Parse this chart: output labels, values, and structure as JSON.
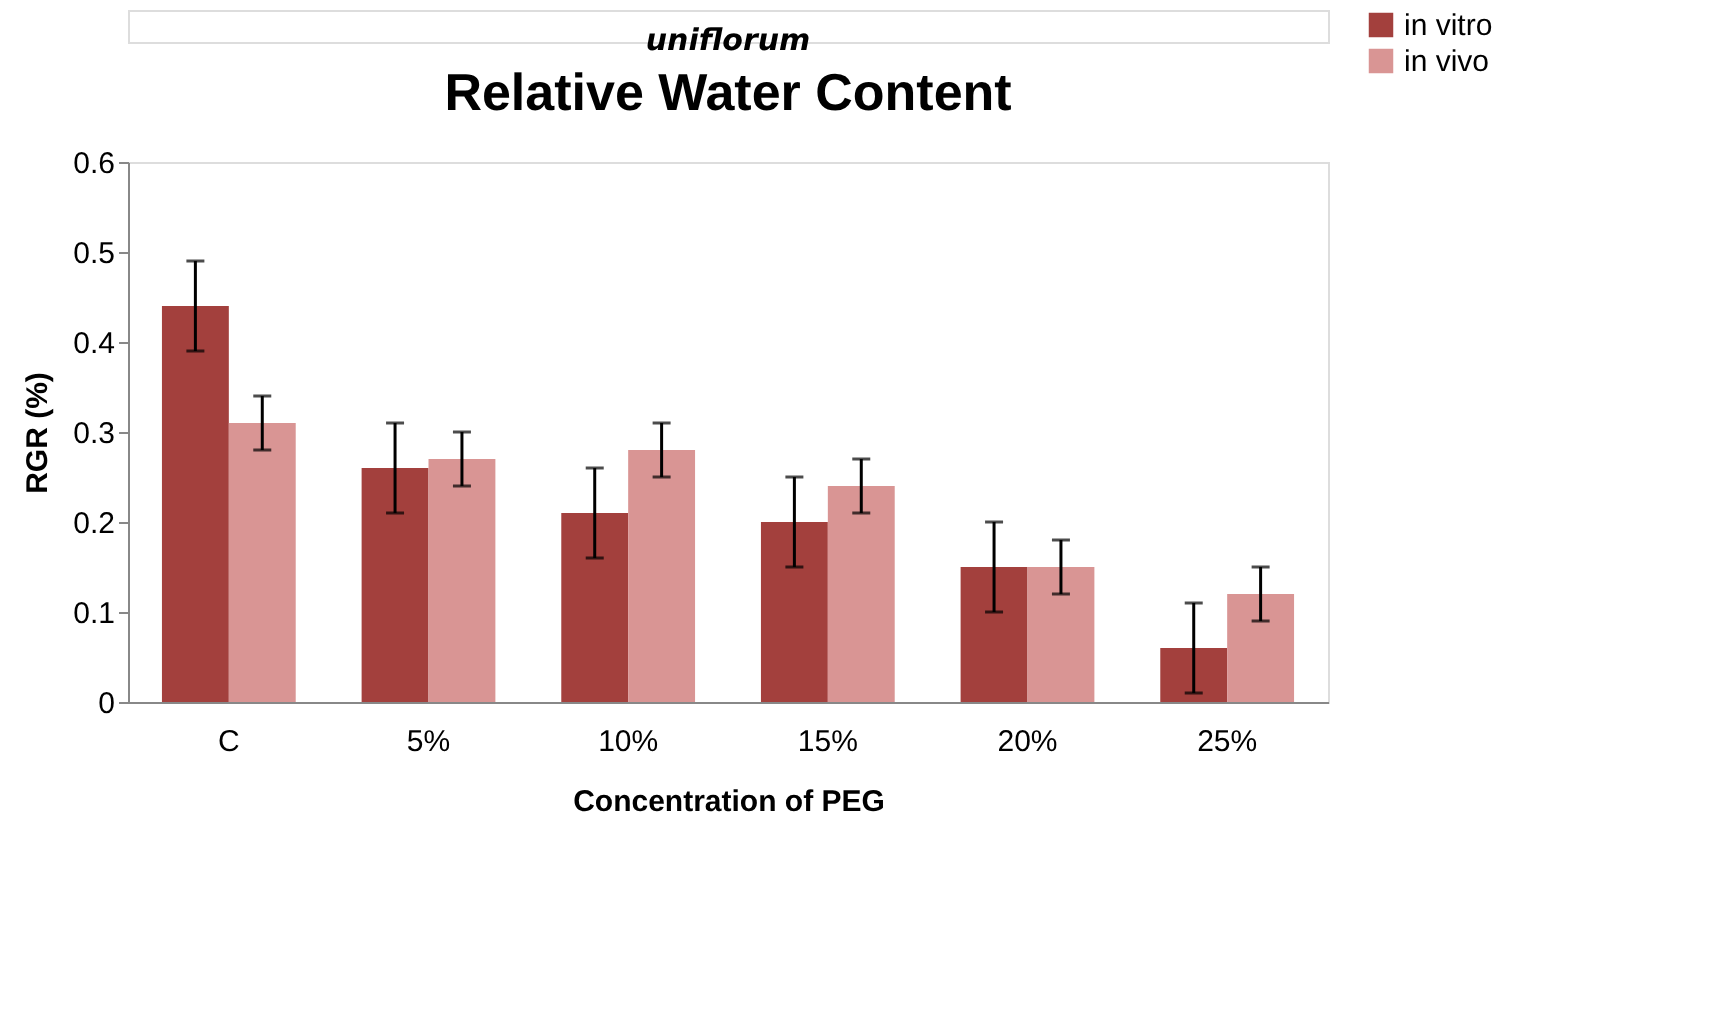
{
  "chart_data": {
    "type": "bar",
    "title": "Relative Water Content",
    "xlabel": "Concentration of PEG",
    "ylabel": "RGR (%)",
    "annotations": [
      "uniflorum"
    ],
    "categories": [
      "C",
      "5%",
      "10%",
      "15%",
      "20%",
      "25%"
    ],
    "series": [
      {
        "name": "in vitro",
        "color": "#a3403d",
        "values": [
          0.44,
          0.26,
          0.21,
          0.2,
          0.15,
          0.06
        ],
        "errors": [
          0.05,
          0.05,
          0.05,
          0.05,
          0.05,
          0.05
        ]
      },
      {
        "name": "in vivo",
        "color": "#d99594",
        "values": [
          0.31,
          0.27,
          0.28,
          0.24,
          0.15,
          0.12
        ],
        "errors": [
          0.03,
          0.03,
          0.03,
          0.03,
          0.03,
          0.03
        ]
      }
    ],
    "ylim": [
      0,
      0.6
    ],
    "yticks": [
      0,
      0.1,
      0.2,
      0.3,
      0.4,
      0.5,
      0.6
    ],
    "grid": false,
    "legend": "right"
  }
}
